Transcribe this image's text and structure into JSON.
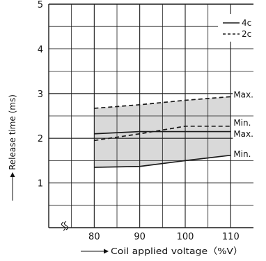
{
  "chart_data": {
    "type": "line",
    "title": "",
    "xlabel": "Coil applied voltage（%V）",
    "ylabel": "Release time (ms)",
    "xlim": [
      70,
      115
    ],
    "ylim": [
      0,
      5
    ],
    "x_ticks": [
      "80",
      "90",
      "100",
      "110"
    ],
    "y_ticks": [
      "1",
      "2",
      "3",
      "4",
      "5"
    ],
    "grid": true,
    "axis_break": "x",
    "legend": {
      "placement": "top-right",
      "entries": [
        {
          "label": "4c",
          "style": "solid"
        },
        {
          "label": "2c",
          "style": "dashed"
        }
      ]
    },
    "series": [
      {
        "name": "4c",
        "bound": "Max.",
        "style": "solid",
        "x": [
          80,
          90,
          100,
          110
        ],
        "values": [
          2.1,
          2.15,
          2.15,
          2.15
        ]
      },
      {
        "name": "4c",
        "bound": "Min.",
        "style": "solid",
        "x": [
          80,
          90,
          100,
          110
        ],
        "values": [
          1.35,
          1.37,
          1.5,
          1.62
        ]
      },
      {
        "name": "2c",
        "bound": "Max.",
        "style": "dashed",
        "x": [
          80,
          90,
          100,
          110
        ],
        "values": [
          2.67,
          2.75,
          2.85,
          2.93
        ]
      },
      {
        "name": "2c",
        "bound": "Min.",
        "style": "dashed",
        "x": [
          80,
          90,
          100,
          110
        ],
        "values": [
          1.95,
          2.1,
          2.27,
          2.27
        ]
      }
    ],
    "annotations": [
      {
        "text": "Max.",
        "x": 110,
        "y": 2.93
      },
      {
        "text": "Min.",
        "x": 110,
        "y": 2.3
      },
      {
        "text": "Max.",
        "x": 110,
        "y": 2.05
      },
      {
        "text": "Min.",
        "x": 110,
        "y": 1.6
      }
    ],
    "colors": {
      "band_fill": "#d9d9d9",
      "line": "#1a1a1a",
      "grid": "#1a1a1a"
    }
  }
}
